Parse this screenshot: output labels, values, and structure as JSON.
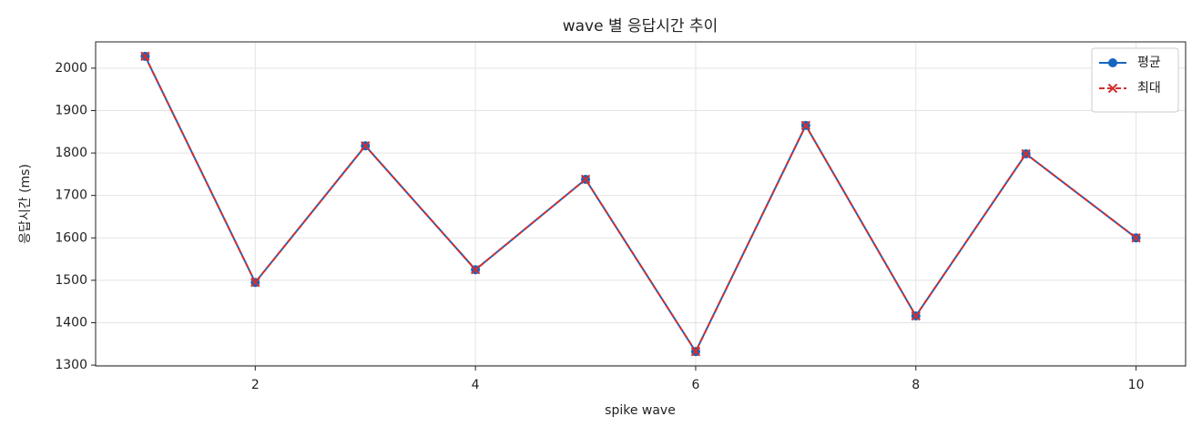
{
  "chart_data": {
    "type": "line",
    "title": "wave 별 응답시간 추이",
    "xlabel": "spike wave",
    "ylabel": "응답시간 (ms)",
    "x": [
      1,
      2,
      3,
      4,
      5,
      6,
      7,
      8,
      9,
      10
    ],
    "series": [
      {
        "name": "평균",
        "color": "#1565c0",
        "linestyle": "solid",
        "marker": "o",
        "values": [
          2028,
          1495,
          1817,
          1525,
          1738,
          1332,
          1865,
          1416,
          1798,
          1600
        ]
      },
      {
        "name": "최대",
        "color": "#d32f2f",
        "linestyle": "dashed",
        "marker": "x",
        "values": [
          2028,
          1495,
          1817,
          1525,
          1738,
          1332,
          1865,
          1416,
          1798,
          1600
        ]
      }
    ],
    "xlim": [
      0.55,
      10.45
    ],
    "ylim": [
      1298,
      2062
    ],
    "xticks": [
      2,
      4,
      6,
      8,
      10
    ],
    "yticks": [
      1300,
      1400,
      1500,
      1600,
      1700,
      1800,
      1900,
      2000
    ],
    "grid": true,
    "legend": "upper right"
  }
}
